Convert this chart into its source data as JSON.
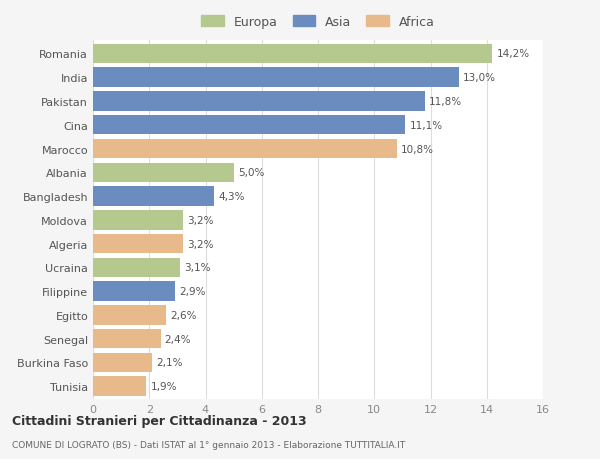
{
  "categories": [
    "Romania",
    "India",
    "Pakistan",
    "Cina",
    "Marocco",
    "Albania",
    "Bangladesh",
    "Moldova",
    "Algeria",
    "Ucraina",
    "Filippine",
    "Egitto",
    "Senegal",
    "Burkina Faso",
    "Tunisia"
  ],
  "values": [
    14.2,
    13.0,
    11.8,
    11.1,
    10.8,
    5.0,
    4.3,
    3.2,
    3.2,
    3.1,
    2.9,
    2.6,
    2.4,
    2.1,
    1.9
  ],
  "labels": [
    "14,2%",
    "13,0%",
    "11,8%",
    "11,1%",
    "10,8%",
    "5,0%",
    "4,3%",
    "3,2%",
    "3,2%",
    "3,1%",
    "2,9%",
    "2,6%",
    "2,4%",
    "2,1%",
    "1,9%"
  ],
  "colors": [
    "#b5c98e",
    "#6b8cbf",
    "#6b8cbf",
    "#6b8cbf",
    "#e8b98a",
    "#b5c98e",
    "#6b8cbf",
    "#b5c98e",
    "#e8b98a",
    "#b5c98e",
    "#6b8cbf",
    "#e8b98a",
    "#e8b98a",
    "#e8b98a",
    "#e8b98a"
  ],
  "legend_labels": [
    "Europa",
    "Asia",
    "Africa"
  ],
  "legend_colors": [
    "#b5c98e",
    "#6b8cbf",
    "#e8b98a"
  ],
  "xlim": [
    0,
    16
  ],
  "xticks": [
    0,
    2,
    4,
    6,
    8,
    10,
    12,
    14,
    16
  ],
  "title": "Cittadini Stranieri per Cittadinanza - 2013",
  "subtitle": "COMUNE DI LOGRATO (BS) - Dati ISTAT al 1° gennaio 2013 - Elaborazione TUTTITALIA.IT",
  "bg_color": "#f5f5f5",
  "bar_bg_color": "#ffffff",
  "grid_color": "#dddddd"
}
